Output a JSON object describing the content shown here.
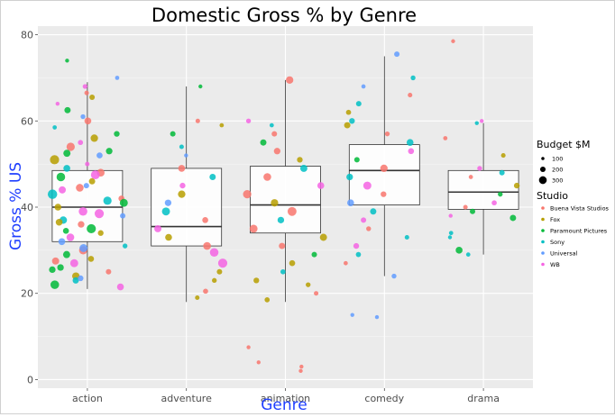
{
  "chart_data": {
    "type": "boxplot-jitter",
    "title": "Domestic Gross % by Genre",
    "xlabel": "Genre",
    "ylabel": "Gross % US",
    "categories": [
      "action",
      "adventure",
      "animation",
      "comedy",
      "drama"
    ],
    "ylim": [
      -2,
      82
    ],
    "yticks": [
      0,
      20,
      40,
      60,
      80
    ],
    "grid": true,
    "legend_position": "right",
    "boxes": [
      {
        "genre": "action",
        "whisker_low": 21,
        "q1": 32,
        "median": 40,
        "q3": 48.5,
        "whisker_high": 69
      },
      {
        "genre": "adventure",
        "whisker_low": 18,
        "q1": 31,
        "median": 35.5,
        "q3": 49,
        "whisker_high": 68
      },
      {
        "genre": "animation",
        "whisker_low": 18,
        "q1": 34,
        "median": 40.5,
        "q3": 49.5,
        "whisker_high": 69.5
      },
      {
        "genre": "comedy",
        "whisker_low": 24,
        "q1": 40.5,
        "median": 48.5,
        "q3": 54.5,
        "whisker_high": 75
      },
      {
        "genre": "drama",
        "whisker_low": 29,
        "q1": 39.5,
        "median": 43.5,
        "q3": 48.5,
        "whisker_high": 59.5
      }
    ],
    "size_legend": {
      "title": "Budget $M",
      "values": [
        100,
        200,
        300
      ]
    },
    "color_legend": {
      "title": "Studio",
      "entries": [
        {
          "name": "Buena Vista Studios",
          "color": "#F8766D"
        },
        {
          "name": "Fox",
          "color": "#B79F00"
        },
        {
          "name": "Paramount Pictures",
          "color": "#00BA38"
        },
        {
          "name": "Sony",
          "color": "#00BFC4"
        },
        {
          "name": "Universal",
          "color": "#619CFF"
        },
        {
          "name": "WB",
          "color": "#F564E3"
        }
      ]
    },
    "points": [
      {
        "g": 0,
        "y": 66.5,
        "s": 0,
        "b": 120
      },
      {
        "g": 0,
        "y": 65.5,
        "s": 1,
        "b": 150
      },
      {
        "g": 0,
        "y": 64,
        "s": 5,
        "b": 100
      },
      {
        "g": 0,
        "y": 62.5,
        "s": 2,
        "b": 180
      },
      {
        "g": 0,
        "y": 61,
        "s": 4,
        "b": 130
      },
      {
        "g": 0,
        "y": 60,
        "s": 0,
        "b": 200
      },
      {
        "g": 0,
        "y": 58.5,
        "s": 3,
        "b": 110
      },
      {
        "g": 0,
        "y": 57,
        "s": 2,
        "b": 160
      },
      {
        "g": 0,
        "y": 56,
        "s": 1,
        "b": 220
      },
      {
        "g": 0,
        "y": 55,
        "s": 5,
        "b": 140
      },
      {
        "g": 0,
        "y": 54,
        "s": 0,
        "b": 250
      },
      {
        "g": 0,
        "y": 53,
        "s": 2,
        "b": 190
      },
      {
        "g": 0,
        "y": 52,
        "s": 4,
        "b": 170
      },
      {
        "g": 0,
        "y": 51,
        "s": 1,
        "b": 280
      },
      {
        "g": 0,
        "y": 50,
        "s": 5,
        "b": 120
      },
      {
        "g": 0,
        "y": 49,
        "s": 3,
        "b": 200
      },
      {
        "g": 0,
        "y": 48,
        "s": 0,
        "b": 230
      },
      {
        "g": 0,
        "y": 47,
        "s": 2,
        "b": 260
      },
      {
        "g": 0,
        "y": 46,
        "s": 1,
        "b": 180
      },
      {
        "g": 0,
        "y": 45,
        "s": 4,
        "b": 150
      },
      {
        "g": 0,
        "y": 44,
        "s": 5,
        "b": 210
      },
      {
        "g": 0,
        "y": 43,
        "s": 3,
        "b": 290
      },
      {
        "g": 0,
        "y": 42,
        "s": 0,
        "b": 170
      },
      {
        "g": 0,
        "y": 41,
        "s": 2,
        "b": 240
      },
      {
        "g": 0,
        "y": 40,
        "s": 1,
        "b": 200
      },
      {
        "g": 0,
        "y": 39,
        "s": 5,
        "b": 260
      },
      {
        "g": 0,
        "y": 38,
        "s": 4,
        "b": 150
      },
      {
        "g": 0,
        "y": 37,
        "s": 3,
        "b": 220
      },
      {
        "g": 0,
        "y": 36,
        "s": 0,
        "b": 190
      },
      {
        "g": 0,
        "y": 35,
        "s": 2,
        "b": 280
      },
      {
        "g": 0,
        "y": 34,
        "s": 1,
        "b": 160
      },
      {
        "g": 0,
        "y": 33,
        "s": 5,
        "b": 230
      },
      {
        "g": 0,
        "y": 32,
        "s": 4,
        "b": 200
      },
      {
        "g": 0,
        "y": 31,
        "s": 3,
        "b": 130
      },
      {
        "g": 0,
        "y": 30,
        "s": 0,
        "b": 250
      },
      {
        "g": 0,
        "y": 29,
        "s": 2,
        "b": 210
      },
      {
        "g": 0,
        "y": 28,
        "s": 1,
        "b": 170
      },
      {
        "g": 0,
        "y": 27,
        "s": 5,
        "b": 240
      },
      {
        "g": 0,
        "y": 26,
        "s": 2,
        "b": 190
      },
      {
        "g": 0,
        "y": 25,
        "s": 0,
        "b": 150
      },
      {
        "g": 0,
        "y": 24,
        "s": 1,
        "b": 220
      },
      {
        "g": 0,
        "y": 23,
        "s": 3,
        "b": 180
      },
      {
        "g": 0,
        "y": 22,
        "s": 2,
        "b": 260
      },
      {
        "g": 0,
        "y": 21.5,
        "s": 5,
        "b": 200
      },
      {
        "g": 0,
        "y": 74,
        "s": 2,
        "b": 100
      },
      {
        "g": 0,
        "y": 70,
        "s": 4,
        "b": 110
      },
      {
        "g": 0,
        "y": 68,
        "s": 5,
        "b": 130
      },
      {
        "g": 0,
        "y": 52.5,
        "s": 2,
        "b": 210
      },
      {
        "g": 0,
        "y": 47.5,
        "s": 5,
        "b": 270
      },
      {
        "g": 0,
        "y": 44.5,
        "s": 0,
        "b": 230
      },
      {
        "g": 0,
        "y": 41.5,
        "s": 3,
        "b": 250
      },
      {
        "g": 0,
        "y": 38.5,
        "s": 5,
        "b": 280
      },
      {
        "g": 0,
        "y": 36.5,
        "s": 1,
        "b": 200
      },
      {
        "g": 0,
        "y": 34.5,
        "s": 2,
        "b": 170
      },
      {
        "g": 0,
        "y": 30.5,
        "s": 4,
        "b": 240
      },
      {
        "g": 0,
        "y": 27.5,
        "s": 0,
        "b": 210
      },
      {
        "g": 0,
        "y": 25.5,
        "s": 2,
        "b": 190
      },
      {
        "g": 0,
        "y": 23.5,
        "s": 4,
        "b": 160
      },
      {
        "g": 1,
        "y": 68,
        "s": 2,
        "b": 100
      },
      {
        "g": 1,
        "y": 60,
        "s": 0,
        "b": 120
      },
      {
        "g": 1,
        "y": 59,
        "s": 1,
        "b": 110
      },
      {
        "g": 1,
        "y": 57,
        "s": 2,
        "b": 150
      },
      {
        "g": 1,
        "y": 54,
        "s": 3,
        "b": 120
      },
      {
        "g": 1,
        "y": 52,
        "s": 4,
        "b": 100
      },
      {
        "g": 1,
        "y": 49,
        "s": 0,
        "b": 200
      },
      {
        "g": 1,
        "y": 47,
        "s": 3,
        "b": 180
      },
      {
        "g": 1,
        "y": 45,
        "s": 5,
        "b": 160
      },
      {
        "g": 1,
        "y": 43,
        "s": 1,
        "b": 220
      },
      {
        "g": 1,
        "y": 41,
        "s": 4,
        "b": 190
      },
      {
        "g": 1,
        "y": 39,
        "s": 3,
        "b": 240
      },
      {
        "g": 1,
        "y": 37,
        "s": 0,
        "b": 170
      },
      {
        "g": 1,
        "y": 35,
        "s": 5,
        "b": 210
      },
      {
        "g": 1,
        "y": 33,
        "s": 1,
        "b": 200
      },
      {
        "g": 1,
        "y": 31,
        "s": 0,
        "b": 230
      },
      {
        "g": 1,
        "y": 29.5,
        "s": 5,
        "b": 260
      },
      {
        "g": 1,
        "y": 27,
        "s": 5,
        "b": 280
      },
      {
        "g": 1,
        "y": 25,
        "s": 1,
        "b": 150
      },
      {
        "g": 1,
        "y": 23,
        "s": 1,
        "b": 130
      },
      {
        "g": 1,
        "y": 20.5,
        "s": 0,
        "b": 140
      },
      {
        "g": 1,
        "y": 19,
        "s": 1,
        "b": 120
      },
      {
        "g": 2,
        "y": 69.5,
        "s": 0,
        "b": 220
      },
      {
        "g": 2,
        "y": 60,
        "s": 5,
        "b": 130
      },
      {
        "g": 2,
        "y": 59,
        "s": 3,
        "b": 110
      },
      {
        "g": 2,
        "y": 57,
        "s": 0,
        "b": 150
      },
      {
        "g": 2,
        "y": 55,
        "s": 2,
        "b": 180
      },
      {
        "g": 2,
        "y": 53,
        "s": 0,
        "b": 190
      },
      {
        "g": 2,
        "y": 51,
        "s": 1,
        "b": 160
      },
      {
        "g": 2,
        "y": 49,
        "s": 3,
        "b": 210
      },
      {
        "g": 2,
        "y": 47,
        "s": 0,
        "b": 230
      },
      {
        "g": 2,
        "y": 45,
        "s": 5,
        "b": 200
      },
      {
        "g": 2,
        "y": 43,
        "s": 0,
        "b": 250
      },
      {
        "g": 2,
        "y": 41,
        "s": 1,
        "b": 220
      },
      {
        "g": 2,
        "y": 39,
        "s": 0,
        "b": 270
      },
      {
        "g": 2,
        "y": 37,
        "s": 3,
        "b": 190
      },
      {
        "g": 2,
        "y": 35,
        "s": 0,
        "b": 240
      },
      {
        "g": 2,
        "y": 33,
        "s": 1,
        "b": 210
      },
      {
        "g": 2,
        "y": 31,
        "s": 0,
        "b": 180
      },
      {
        "g": 2,
        "y": 29,
        "s": 2,
        "b": 150
      },
      {
        "g": 2,
        "y": 27,
        "s": 1,
        "b": 170
      },
      {
        "g": 2,
        "y": 25,
        "s": 3,
        "b": 140
      },
      {
        "g": 2,
        "y": 23,
        "s": 1,
        "b": 160
      },
      {
        "g": 2,
        "y": 22,
        "s": 1,
        "b": 130
      },
      {
        "g": 2,
        "y": 20,
        "s": 0,
        "b": 120
      },
      {
        "g": 2,
        "y": 18.5,
        "s": 1,
        "b": 140
      },
      {
        "g": 2,
        "y": 7.5,
        "s": 0,
        "b": 100
      },
      {
        "g": 2,
        "y": 4,
        "s": 0,
        "b": 100
      },
      {
        "g": 2,
        "y": 3,
        "s": 0,
        "b": 100
      },
      {
        "g": 2,
        "y": 2,
        "s": 0,
        "b": 100
      },
      {
        "g": 3,
        "y": 75.5,
        "s": 4,
        "b": 150
      },
      {
        "g": 3,
        "y": 70,
        "s": 3,
        "b": 130
      },
      {
        "g": 3,
        "y": 68,
        "s": 4,
        "b": 110
      },
      {
        "g": 3,
        "y": 66,
        "s": 0,
        "b": 120
      },
      {
        "g": 3,
        "y": 64,
        "s": 3,
        "b": 150
      },
      {
        "g": 3,
        "y": 62,
        "s": 1,
        "b": 140
      },
      {
        "g": 3,
        "y": 60,
        "s": 3,
        "b": 160
      },
      {
        "g": 3,
        "y": 59,
        "s": 1,
        "b": 180
      },
      {
        "g": 3,
        "y": 57,
        "s": 0,
        "b": 130
      },
      {
        "g": 3,
        "y": 55,
        "s": 3,
        "b": 200
      },
      {
        "g": 3,
        "y": 53,
        "s": 5,
        "b": 170
      },
      {
        "g": 3,
        "y": 51,
        "s": 2,
        "b": 150
      },
      {
        "g": 3,
        "y": 49,
        "s": 0,
        "b": 220
      },
      {
        "g": 3,
        "y": 47,
        "s": 3,
        "b": 190
      },
      {
        "g": 3,
        "y": 45,
        "s": 5,
        "b": 240
      },
      {
        "g": 3,
        "y": 43,
        "s": 0,
        "b": 160
      },
      {
        "g": 3,
        "y": 41,
        "s": 4,
        "b": 200
      },
      {
        "g": 3,
        "y": 39,
        "s": 3,
        "b": 180
      },
      {
        "g": 3,
        "y": 37,
        "s": 5,
        "b": 150
      },
      {
        "g": 3,
        "y": 35,
        "s": 0,
        "b": 130
      },
      {
        "g": 3,
        "y": 33,
        "s": 3,
        "b": 120
      },
      {
        "g": 3,
        "y": 31,
        "s": 5,
        "b": 160
      },
      {
        "g": 3,
        "y": 29,
        "s": 3,
        "b": 140
      },
      {
        "g": 3,
        "y": 27,
        "s": 0,
        "b": 110
      },
      {
        "g": 3,
        "y": 24,
        "s": 4,
        "b": 130
      },
      {
        "g": 3,
        "y": 15,
        "s": 4,
        "b": 100
      },
      {
        "g": 3,
        "y": 14.5,
        "s": 4,
        "b": 100
      },
      {
        "g": 4,
        "y": 78.5,
        "s": 0,
        "b": 100
      },
      {
        "g": 4,
        "y": 60,
        "s": 5,
        "b": 100
      },
      {
        "g": 4,
        "y": 59.5,
        "s": 3,
        "b": 100
      },
      {
        "g": 4,
        "y": 56,
        "s": 0,
        "b": 110
      },
      {
        "g": 4,
        "y": 52,
        "s": 1,
        "b": 120
      },
      {
        "g": 4,
        "y": 49,
        "s": 5,
        "b": 130
      },
      {
        "g": 4,
        "y": 48,
        "s": 3,
        "b": 150
      },
      {
        "g": 4,
        "y": 47,
        "s": 0,
        "b": 110
      },
      {
        "g": 4,
        "y": 45,
        "s": 1,
        "b": 160
      },
      {
        "g": 4,
        "y": 43,
        "s": 2,
        "b": 130
      },
      {
        "g": 4,
        "y": 41,
        "s": 5,
        "b": 140
      },
      {
        "g": 4,
        "y": 40,
        "s": 0,
        "b": 120
      },
      {
        "g": 4,
        "y": 39,
        "s": 2,
        "b": 150
      },
      {
        "g": 4,
        "y": 38,
        "s": 5,
        "b": 100
      },
      {
        "g": 4,
        "y": 37.5,
        "s": 2,
        "b": 180
      },
      {
        "g": 4,
        "y": 34,
        "s": 3,
        "b": 110
      },
      {
        "g": 4,
        "y": 33,
        "s": 3,
        "b": 100
      },
      {
        "g": 4,
        "y": 30,
        "s": 2,
        "b": 200
      },
      {
        "g": 4,
        "y": 29,
        "s": 3,
        "b": 110
      }
    ]
  }
}
